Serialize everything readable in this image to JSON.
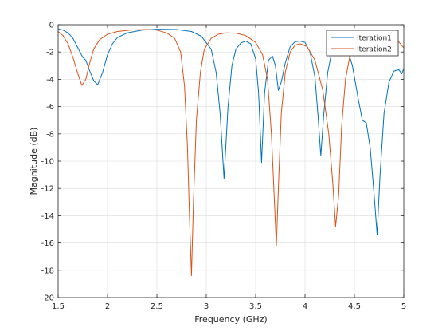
{
  "chart_data": {
    "type": "line",
    "xlabel": "Frequency (GHz)",
    "ylabel": "Magnitude (dB)",
    "xlim": [
      1.5,
      5
    ],
    "ylim": [
      -20,
      0
    ],
    "xticks": [
      1.5,
      2,
      2.5,
      3,
      3.5,
      4,
      4.5,
      5
    ],
    "yticks": [
      0,
      -2,
      -4,
      -6,
      -8,
      -10,
      -12,
      -14,
      -16,
      -18,
      -20
    ],
    "grid": true,
    "legend": "top-right",
    "series": [
      {
        "name": "Iteration1",
        "color": "#0072BD",
        "points": [
          [
            1.5,
            -0.3
          ],
          [
            1.55,
            -0.4
          ],
          [
            1.6,
            -0.6
          ],
          [
            1.65,
            -1.0
          ],
          [
            1.7,
            -1.7
          ],
          [
            1.75,
            -2.4
          ],
          [
            1.78,
            -2.6
          ],
          [
            1.82,
            -3.4
          ],
          [
            1.86,
            -4.1
          ],
          [
            1.9,
            -4.4
          ],
          [
            1.95,
            -3.5
          ],
          [
            2.0,
            -2.2
          ],
          [
            2.05,
            -1.4
          ],
          [
            2.1,
            -0.95
          ],
          [
            2.2,
            -0.6
          ],
          [
            2.35,
            -0.4
          ],
          [
            2.5,
            -0.33
          ],
          [
            2.7,
            -0.35
          ],
          [
            2.85,
            -0.5
          ],
          [
            2.95,
            -0.85
          ],
          [
            3.05,
            -1.8
          ],
          [
            3.1,
            -3.5
          ],
          [
            3.14,
            -6.5
          ],
          [
            3.18,
            -11.3
          ],
          [
            3.22,
            -6.0
          ],
          [
            3.26,
            -3.0
          ],
          [
            3.3,
            -1.8
          ],
          [
            3.35,
            -1.35
          ],
          [
            3.4,
            -1.2
          ],
          [
            3.45,
            -1.4
          ],
          [
            3.5,
            -2.5
          ],
          [
            3.53,
            -5.0
          ],
          [
            3.56,
            -10.1
          ],
          [
            3.59,
            -5.0
          ],
          [
            3.63,
            -2.6
          ],
          [
            3.67,
            -2.3
          ],
          [
            3.7,
            -3.0
          ],
          [
            3.73,
            -4.8
          ],
          [
            3.76,
            -4.2
          ],
          [
            3.8,
            -2.8
          ],
          [
            3.85,
            -1.6
          ],
          [
            3.9,
            -1.25
          ],
          [
            3.95,
            -1.2
          ],
          [
            4.0,
            -1.3
          ],
          [
            4.05,
            -2.0
          ],
          [
            4.1,
            -3.8
          ],
          [
            4.13,
            -6.5
          ],
          [
            4.16,
            -9.6
          ],
          [
            4.19,
            -6.5
          ],
          [
            4.23,
            -3.5
          ],
          [
            4.27,
            -2.0
          ],
          [
            4.32,
            -1.3
          ],
          [
            4.36,
            -1.2
          ],
          [
            4.42,
            -1.6
          ],
          [
            4.48,
            -3.0
          ],
          [
            4.54,
            -5.5
          ],
          [
            4.58,
            -7.0
          ],
          [
            4.62,
            -7.2
          ],
          [
            4.66,
            -9.0
          ],
          [
            4.7,
            -12.5
          ],
          [
            4.73,
            -15.4
          ],
          [
            4.76,
            -11.0
          ],
          [
            4.8,
            -6.5
          ],
          [
            4.85,
            -4.2
          ],
          [
            4.9,
            -3.4
          ],
          [
            4.95,
            -3.3
          ],
          [
            4.98,
            -3.6
          ],
          [
            5.0,
            -3.2
          ]
        ]
      },
      {
        "name": "Iteration2",
        "color": "#D95319",
        "points": [
          [
            1.5,
            -0.5
          ],
          [
            1.55,
            -0.8
          ],
          [
            1.6,
            -1.4
          ],
          [
            1.65,
            -2.4
          ],
          [
            1.7,
            -3.6
          ],
          [
            1.74,
            -4.45
          ],
          [
            1.78,
            -4.0
          ],
          [
            1.82,
            -2.8
          ],
          [
            1.86,
            -1.8
          ],
          [
            1.92,
            -1.1
          ],
          [
            2.0,
            -0.7
          ],
          [
            2.1,
            -0.5
          ],
          [
            2.25,
            -0.38
          ],
          [
            2.4,
            -0.35
          ],
          [
            2.5,
            -0.4
          ],
          [
            2.6,
            -0.6
          ],
          [
            2.68,
            -1.0
          ],
          [
            2.74,
            -2.0
          ],
          [
            2.78,
            -4.5
          ],
          [
            2.81,
            -9.0
          ],
          [
            2.83,
            -14.0
          ],
          [
            2.85,
            -18.4
          ],
          [
            2.87,
            -13.0
          ],
          [
            2.9,
            -7.0
          ],
          [
            2.94,
            -3.5
          ],
          [
            2.98,
            -1.8
          ],
          [
            3.05,
            -1.0
          ],
          [
            3.12,
            -0.7
          ],
          [
            3.2,
            -0.6
          ],
          [
            3.3,
            -0.62
          ],
          [
            3.4,
            -0.8
          ],
          [
            3.5,
            -1.3
          ],
          [
            3.57,
            -2.2
          ],
          [
            3.62,
            -4.0
          ],
          [
            3.66,
            -8.0
          ],
          [
            3.69,
            -13.0
          ],
          [
            3.71,
            -16.2
          ],
          [
            3.73,
            -12.0
          ],
          [
            3.76,
            -6.5
          ],
          [
            3.8,
            -3.5
          ],
          [
            3.85,
            -2.0
          ],
          [
            3.9,
            -1.5
          ],
          [
            3.95,
            -1.4
          ],
          [
            4.02,
            -1.6
          ],
          [
            4.1,
            -2.6
          ],
          [
            4.18,
            -4.8
          ],
          [
            4.24,
            -8.0
          ],
          [
            4.28,
            -11.5
          ],
          [
            4.31,
            -14.8
          ],
          [
            4.34,
            -12.5
          ],
          [
            4.37,
            -7.5
          ],
          [
            4.41,
            -4.0
          ],
          [
            4.46,
            -2.1
          ],
          [
            4.55,
            -1.1
          ],
          [
            4.65,
            -0.7
          ],
          [
            4.75,
            -0.6
          ],
          [
            4.85,
            -0.75
          ],
          [
            4.92,
            -1.0
          ],
          [
            5.0,
            -1.7
          ]
        ]
      }
    ]
  }
}
